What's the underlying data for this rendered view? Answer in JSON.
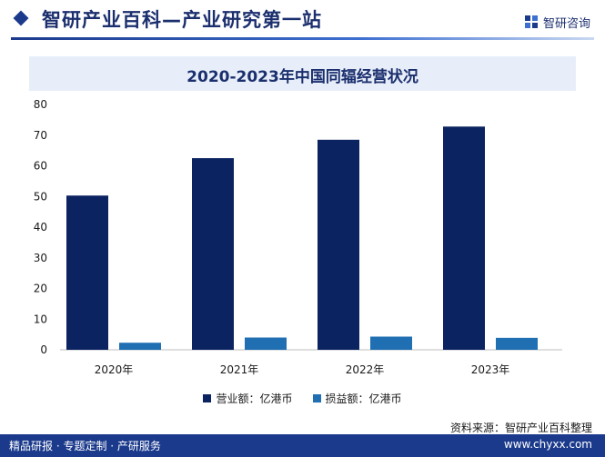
{
  "header": {
    "title": "智研产业百科—产业研究第一站",
    "logo_text": "智研咨询"
  },
  "colors": {
    "brand": "#1b2f6e",
    "series_revenue": "#0c2361",
    "series_profit": "#1f6fb2",
    "footer": "#1b3a8c"
  },
  "legend": {
    "revenue": "营业额：亿港币",
    "profit": "损益额：亿港币"
  },
  "source": "资料来源：智研产业百科整理",
  "footer": {
    "left": "精品研报 · 专题定制 · 产研服务",
    "right": "www.chyxx.com"
  },
  "chart_data": {
    "type": "bar",
    "title": "2020-2023年中国同辐经营状况",
    "categories": [
      "2020年",
      "2021年",
      "2022年",
      "2023年"
    ],
    "series": [
      {
        "name": "营业额：亿港币",
        "values": [
          50.3,
          62.5,
          68.5,
          72.8
        ]
      },
      {
        "name": "损益额：亿港币",
        "values": [
          2.3,
          4.0,
          4.3,
          3.9
        ]
      }
    ],
    "ylim": [
      0,
      80
    ],
    "yticks": [
      0,
      10,
      20,
      30,
      40,
      50,
      60,
      70,
      80
    ],
    "grid": false,
    "legend_position": "bottom"
  }
}
